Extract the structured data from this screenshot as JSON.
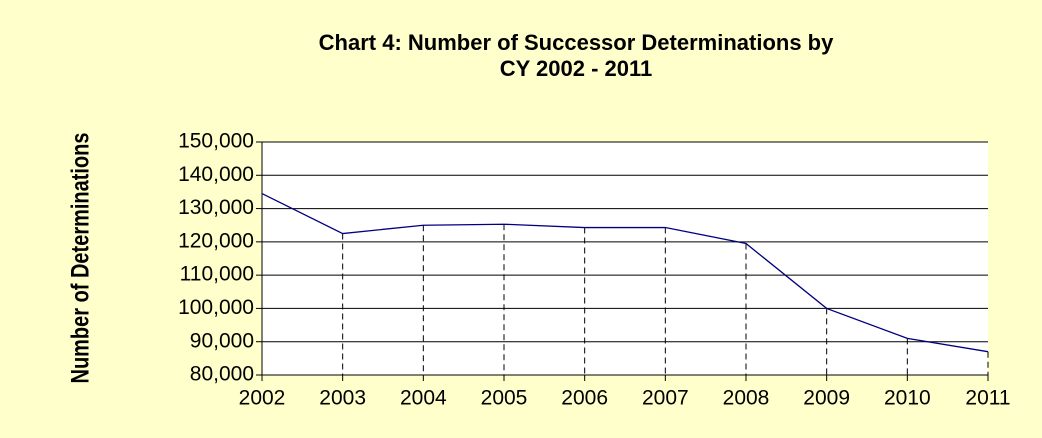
{
  "chart_data": {
    "type": "line",
    "title": [
      "Chart 4: Number of Successor Determinations by",
      "CY 2002 - 2011"
    ],
    "y_label": "Number of Determinations",
    "x": [
      2002,
      2003,
      2004,
      2005,
      2006,
      2007,
      2008,
      2009,
      2010,
      2011
    ],
    "series": [
      {
        "color": "#000080",
        "values": [
          134500,
          122500,
          125000,
          125300,
          124300,
          124300,
          119500,
          100000,
          91000,
          87000
        ]
      }
    ],
    "xlim": [
      2002,
      2011
    ],
    "xticks": [
      2002,
      2003,
      2004,
      2005,
      2006,
      2007,
      2008,
      2009,
      2010,
      2011
    ],
    "ylim": [
      80000,
      150000
    ],
    "yticks": [
      {
        "value": 80000,
        "label": "80,000"
      },
      {
        "value": 90000,
        "label": "90,000"
      },
      {
        "value": 100000,
        "label": "100,000"
      },
      {
        "value": 110000,
        "label": "110,000"
      },
      {
        "value": 120000,
        "label": "120,000"
      },
      {
        "value": 130000,
        "label": "130,000"
      },
      {
        "value": 140000,
        "label": "140,000"
      },
      {
        "value": 150000,
        "label": "150,000"
      }
    ],
    "grid": true,
    "drop_lines": true
  }
}
